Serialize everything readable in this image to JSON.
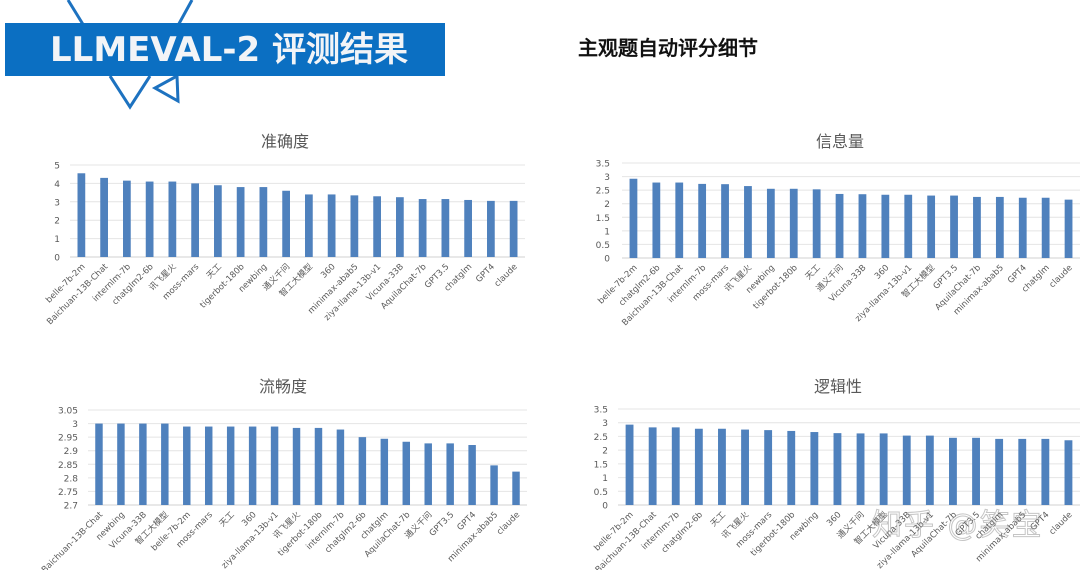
{
  "header": {
    "banner_title": "LLMEVAL-2 评测结果",
    "subtitle": "主观题自动评分细节",
    "brand_color": "#0b6fc2"
  },
  "watermark": "知乎 @笑宝",
  "bar_color": "#4f81bd",
  "chart_data": [
    {
      "type": "bar",
      "title": "准确度",
      "xlabel": "",
      "ylabel": "",
      "ylim": [
        0,
        5
      ],
      "yticks": [
        0,
        1,
        2,
        3,
        4,
        5
      ],
      "grid": true,
      "legend": "none",
      "categories": [
        "belle-7b-2m",
        "Baichuan-13B-Chat",
        "internlm-7b",
        "chatglm2-6b",
        "讯飞星火",
        "moss-mars",
        "天工",
        "tigerbot-180b",
        "newbing",
        "通义千问",
        "智工大模型",
        "360",
        "minimax-abab5",
        "ziya-llama-13b-v1",
        "Vicuna-33B",
        "AquilaChat-7b",
        "GPT3.5",
        "chatglm",
        "GPT4",
        "claude"
      ],
      "values": [
        4.55,
        4.3,
        4.15,
        4.1,
        4.1,
        4.0,
        3.9,
        3.8,
        3.8,
        3.6,
        3.4,
        3.4,
        3.35,
        3.3,
        3.25,
        3.15,
        3.15,
        3.1,
        3.05,
        3.05
      ]
    },
    {
      "type": "bar",
      "title": "信息量",
      "xlabel": "",
      "ylabel": "",
      "ylim": [
        0,
        3.5
      ],
      "yticks": [
        0,
        0.5,
        1,
        1.5,
        2,
        2.5,
        3,
        3.5
      ],
      "grid": true,
      "legend": "none",
      "categories": [
        "belle-7b-2m",
        "chatglm2-6b",
        "Baichuan-13B-Chat",
        "internlm-7b",
        "moss-mars",
        "讯飞星火",
        "newbing",
        "tigerbot-180b",
        "天工",
        "通义千问",
        "Vicuna-33B",
        "360",
        "ziya-llama-13b-v1",
        "智工大模型",
        "GPT3.5",
        "AquilaChat-7b",
        "minimax-abab5",
        "GPT4",
        "chatglm",
        "claude"
      ],
      "values": [
        2.92,
        2.78,
        2.78,
        2.73,
        2.72,
        2.65,
        2.55,
        2.55,
        2.53,
        2.36,
        2.35,
        2.33,
        2.33,
        2.3,
        2.3,
        2.25,
        2.25,
        2.22,
        2.22,
        2.15
      ]
    },
    {
      "type": "bar",
      "title": "流畅度",
      "xlabel": "",
      "ylabel": "",
      "ylim": [
        2.7,
        3.05
      ],
      "yticks": [
        2.7,
        2.75,
        2.8,
        2.85,
        2.9,
        2.95,
        3,
        3.05
      ],
      "grid": true,
      "legend": "none",
      "categories": [
        "Baichuan-13B-Chat",
        "newbing",
        "Vicuna-33B",
        "智工大模型",
        "belle-7b-2m",
        "moss-mars",
        "天工",
        "360",
        "ziya-llama-13b-v1",
        "讯飞星火",
        "tigerbot-180b",
        "internlm-7b",
        "chatglm2-6b",
        "chatglm",
        "AquilaChat-7b",
        "通义千问",
        "GPT3.5",
        "GPT4",
        "minimax-abab5",
        "claude"
      ],
      "values": [
        3.0,
        3.0,
        3.0,
        3.0,
        2.989,
        2.989,
        2.989,
        2.989,
        2.989,
        2.984,
        2.984,
        2.978,
        2.95,
        2.944,
        2.933,
        2.927,
        2.927,
        2.921,
        2.846,
        2.823
      ]
    },
    {
      "type": "bar",
      "title": "逻辑性",
      "xlabel": "",
      "ylabel": "",
      "ylim": [
        0,
        3.5
      ],
      "yticks": [
        0,
        0.5,
        1,
        1.5,
        2,
        2.5,
        3,
        3.5
      ],
      "grid": true,
      "legend": "none",
      "categories": [
        "belle-7b-2m",
        "Baichuan-13B-Chat",
        "internlm-7b",
        "chatglm2-6b",
        "天工",
        "讯飞星火",
        "moss-mars",
        "tigerbot-180b",
        "newbing",
        "360",
        "通义千问",
        "智工大模型",
        "Vicuna-33B",
        "ziya-llama-13b-v1",
        "AquilaChat-7b",
        "GPT3.5",
        "chatglm",
        "minimax-abab5",
        "GPT4",
        "claude"
      ],
      "values": [
        2.93,
        2.83,
        2.83,
        2.78,
        2.78,
        2.75,
        2.73,
        2.7,
        2.66,
        2.62,
        2.61,
        2.61,
        2.53,
        2.53,
        2.45,
        2.45,
        2.41,
        2.41,
        2.41,
        2.36
      ]
    }
  ]
}
